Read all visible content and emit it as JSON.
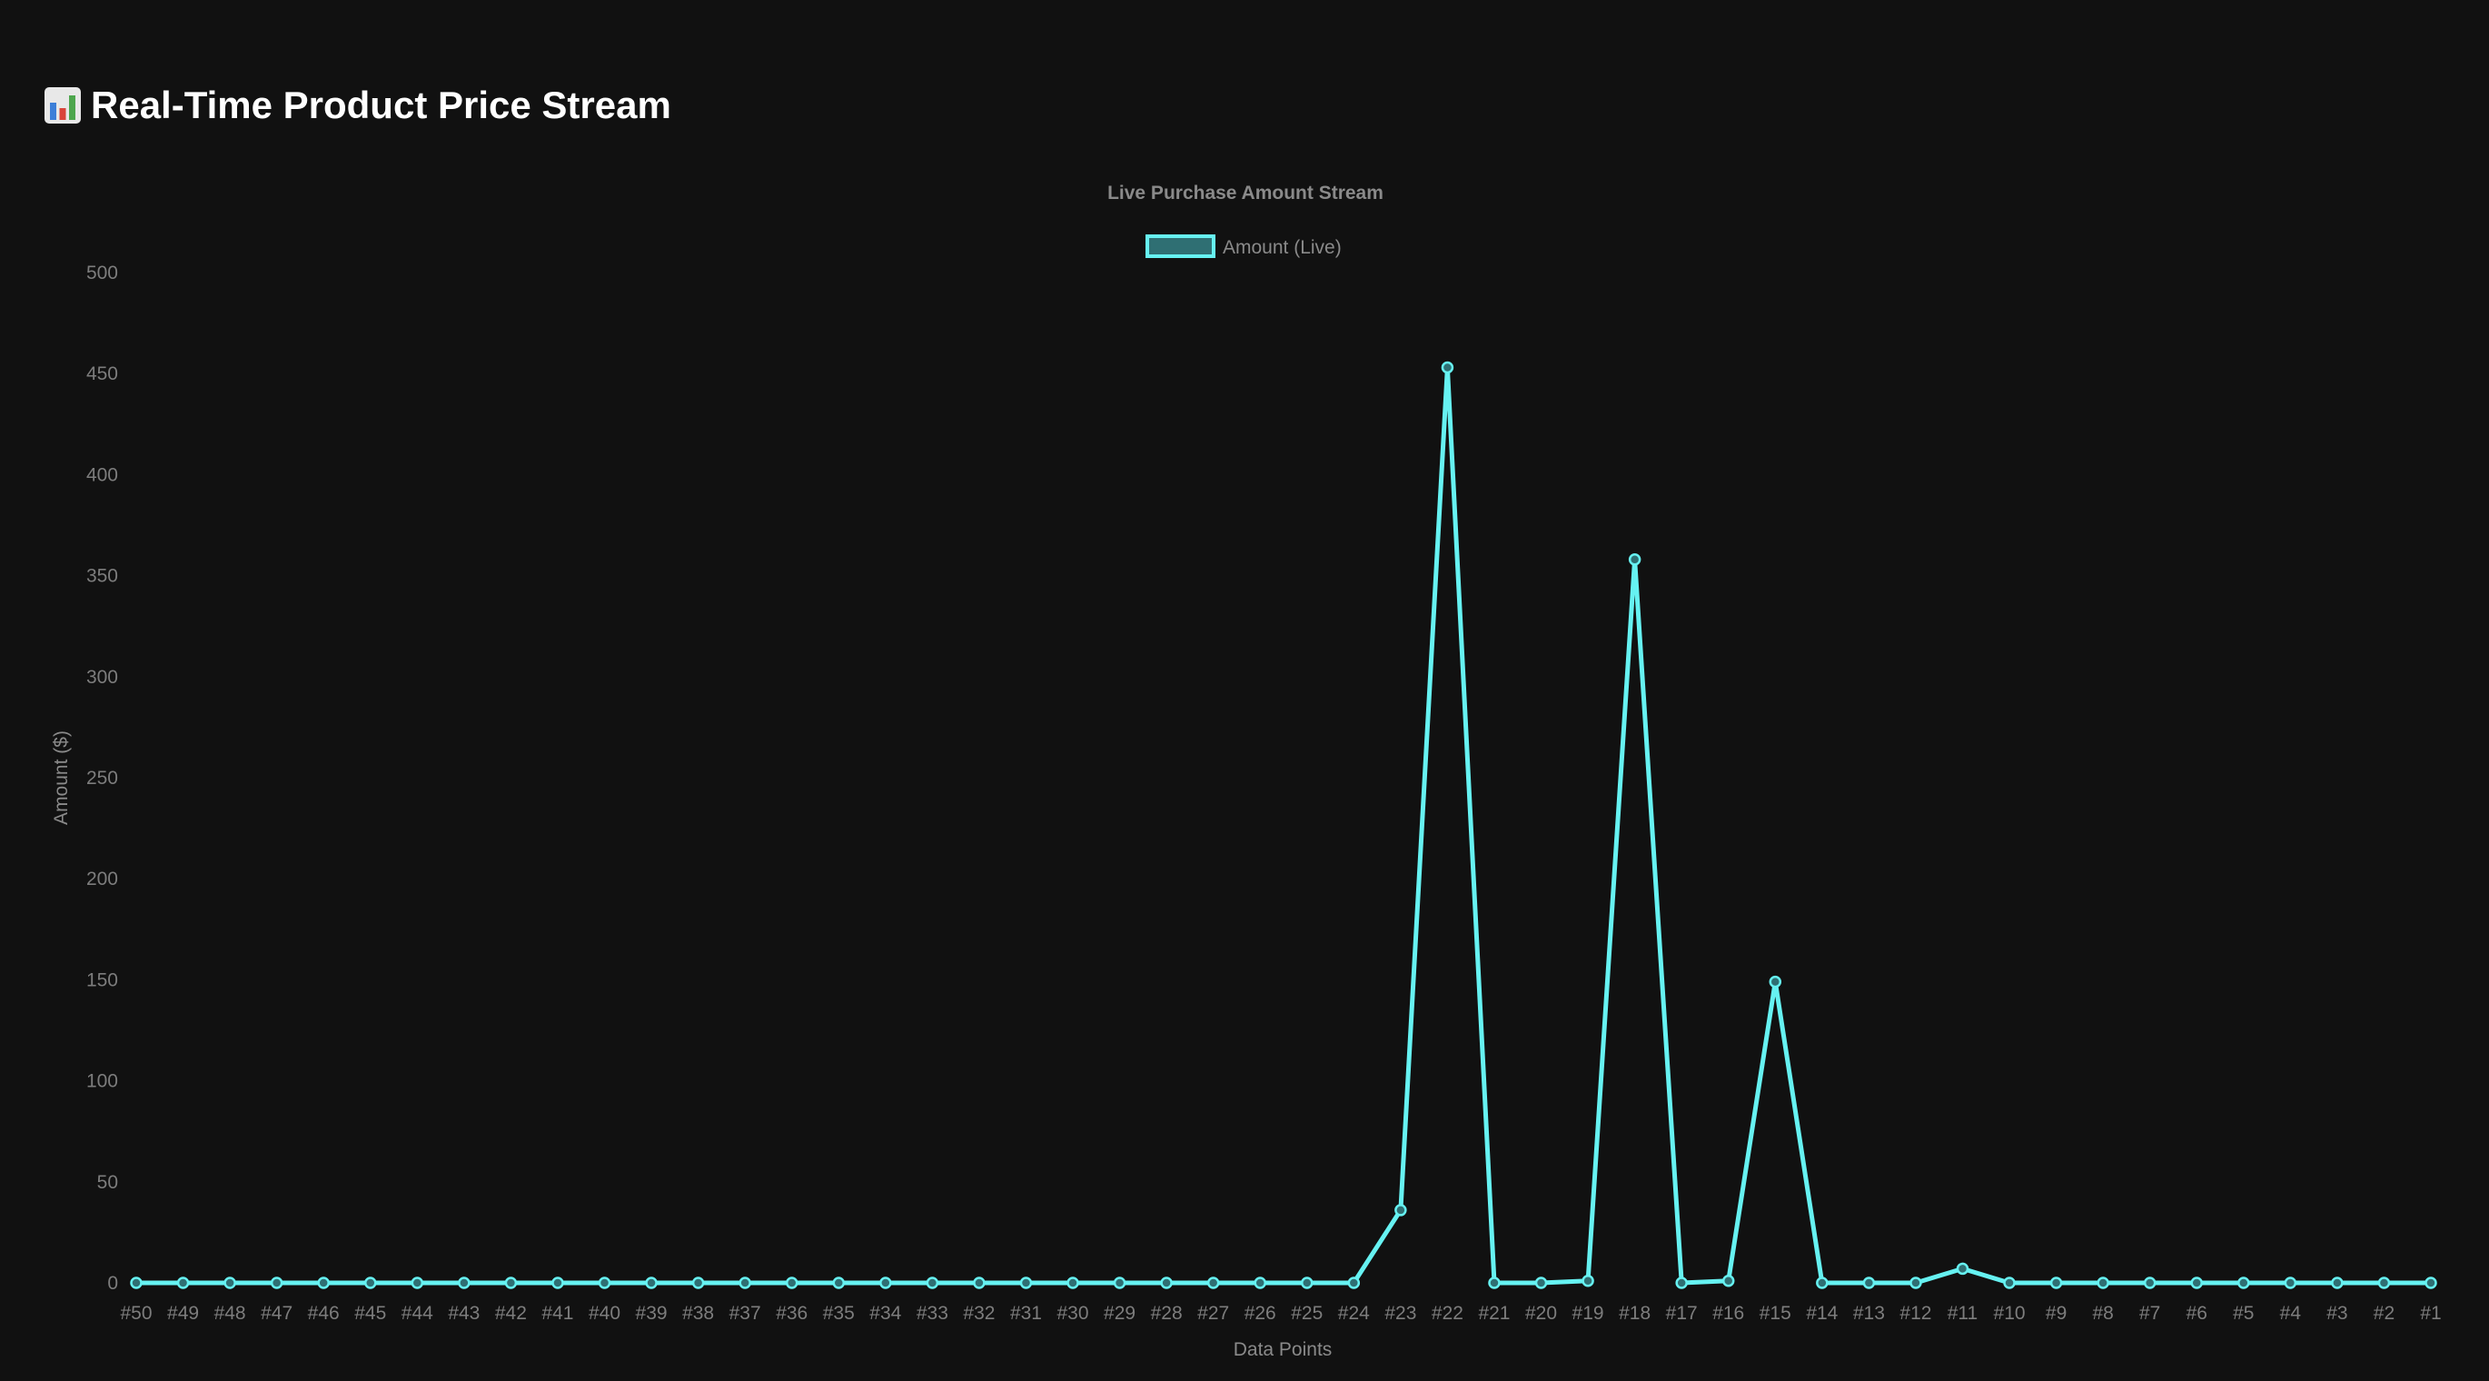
{
  "header": {
    "icon": "bar-chart-icon",
    "title": "Real-Time Product Price Stream"
  },
  "colors": {
    "background": "#111111",
    "line": "#66f2f2",
    "legend_fill": "#2f6f73",
    "text_muted": "#8a8a8a"
  },
  "chart_data": {
    "type": "line",
    "title": "Live Purchase Amount Stream",
    "xlabel": "Data Points",
    "ylabel": "Amount ($)",
    "legend_position": "top-center",
    "grid": false,
    "ylim": [
      0,
      500
    ],
    "yticks": [
      "0",
      "50",
      "100",
      "150",
      "200",
      "250",
      "300",
      "350",
      "400",
      "450",
      "500"
    ],
    "categories": [
      "#50",
      "#49",
      "#48",
      "#47",
      "#46",
      "#45",
      "#44",
      "#43",
      "#42",
      "#41",
      "#40",
      "#39",
      "#38",
      "#37",
      "#36",
      "#35",
      "#34",
      "#33",
      "#32",
      "#31",
      "#30",
      "#29",
      "#28",
      "#27",
      "#26",
      "#25",
      "#24",
      "#23",
      "#22",
      "#21",
      "#20",
      "#19",
      "#18",
      "#17",
      "#16",
      "#15",
      "#14",
      "#13",
      "#12",
      "#11",
      "#10",
      "#9",
      "#8",
      "#7",
      "#6",
      "#5",
      "#4",
      "#3",
      "#2",
      "#1"
    ],
    "series": [
      {
        "name": "Amount (Live)",
        "values": [
          0,
          0,
          0,
          0,
          0,
          0,
          0,
          0,
          0,
          0,
          0,
          0,
          0,
          0,
          0,
          0,
          0,
          0,
          0,
          0,
          0,
          0,
          0,
          0,
          0,
          0,
          0,
          36,
          453,
          0,
          0,
          1,
          358,
          0,
          1,
          149,
          0,
          0,
          0,
          7,
          0,
          0,
          0,
          0,
          0,
          0,
          0,
          0,
          0,
          0
        ]
      }
    ]
  }
}
